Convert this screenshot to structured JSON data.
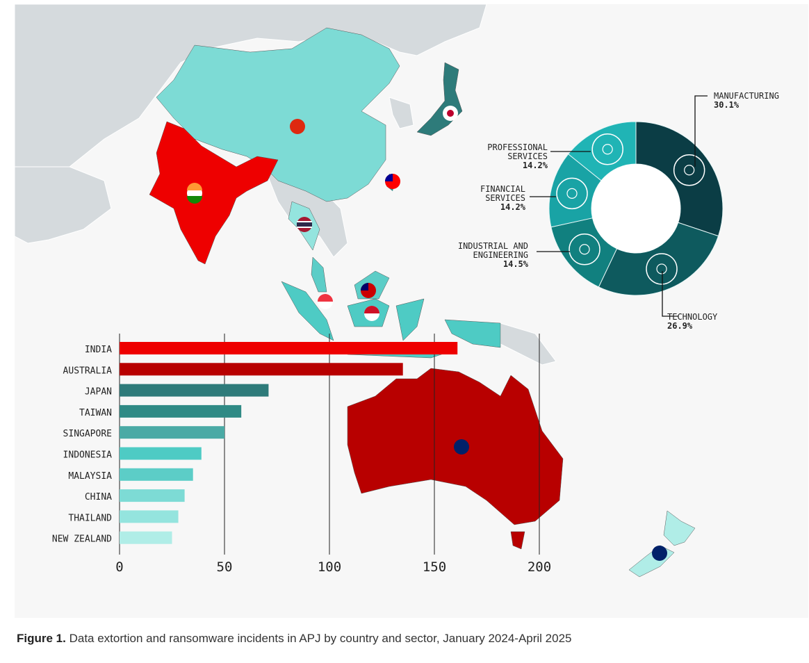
{
  "caption": {
    "label": "Figure 1.",
    "text": "Data extortion and ransomware incidents in APJ by country and sector, January 2024-April 2025"
  },
  "colors": {
    "india": "#ee0000",
    "australia": "#b80000",
    "japan": "#2e7b7a",
    "taiwan": "#2f8a85",
    "singapore": "#4aaaa5",
    "indonesia": "#4ecbc4",
    "malaysia": "#5ccdc7",
    "china": "#7ddbd5",
    "thailand": "#94e4de",
    "new_zealand": "#b0ede7",
    "land": "#d5dadd",
    "background": "#f7f7f7"
  },
  "chart_data": [
    {
      "type": "bar",
      "orientation": "horizontal",
      "categories": [
        "INDIA",
        "AUSTRALIA",
        "JAPAN",
        "TAIWAN",
        "SINGAPORE",
        "INDONESIA",
        "MALAYSIA",
        "CHINA",
        "THAILAND",
        "NEW ZEALAND"
      ],
      "values": [
        161,
        135,
        71,
        58,
        50,
        39,
        35,
        31,
        28,
        25
      ],
      "xlim": [
        0,
        200
      ],
      "xticks": [
        "0",
        "50",
        "100",
        "150",
        "200"
      ],
      "grid": true
    },
    {
      "type": "pie",
      "donut": true,
      "slices": [
        {
          "label": "MANUFACTURING",
          "value": 30.1,
          "display": "30.1%",
          "color": "#0b3d45",
          "icon": "robot-arm-icon"
        },
        {
          "label": "TECHNOLOGY",
          "value": 26.9,
          "display": "26.9%",
          "color": "#0e5a5e",
          "icon": "gear-circuit-icon"
        },
        {
          "label": "INDUSTRIAL AND ENGINEERING",
          "value": 14.5,
          "display": "14.5%",
          "color": "#11807f",
          "icon": "factory-icon"
        },
        {
          "label": "FINANCIAL SERVICES",
          "value": 14.2,
          "display": "14.2%",
          "color": "#19a3a5",
          "icon": "dollar-coin-icon"
        },
        {
          "label": "PROFESSIONAL SERVICES",
          "value": 14.2,
          "display": "14.2%",
          "color": "#20b4b5",
          "icon": "people-group-icon"
        }
      ]
    }
  ]
}
